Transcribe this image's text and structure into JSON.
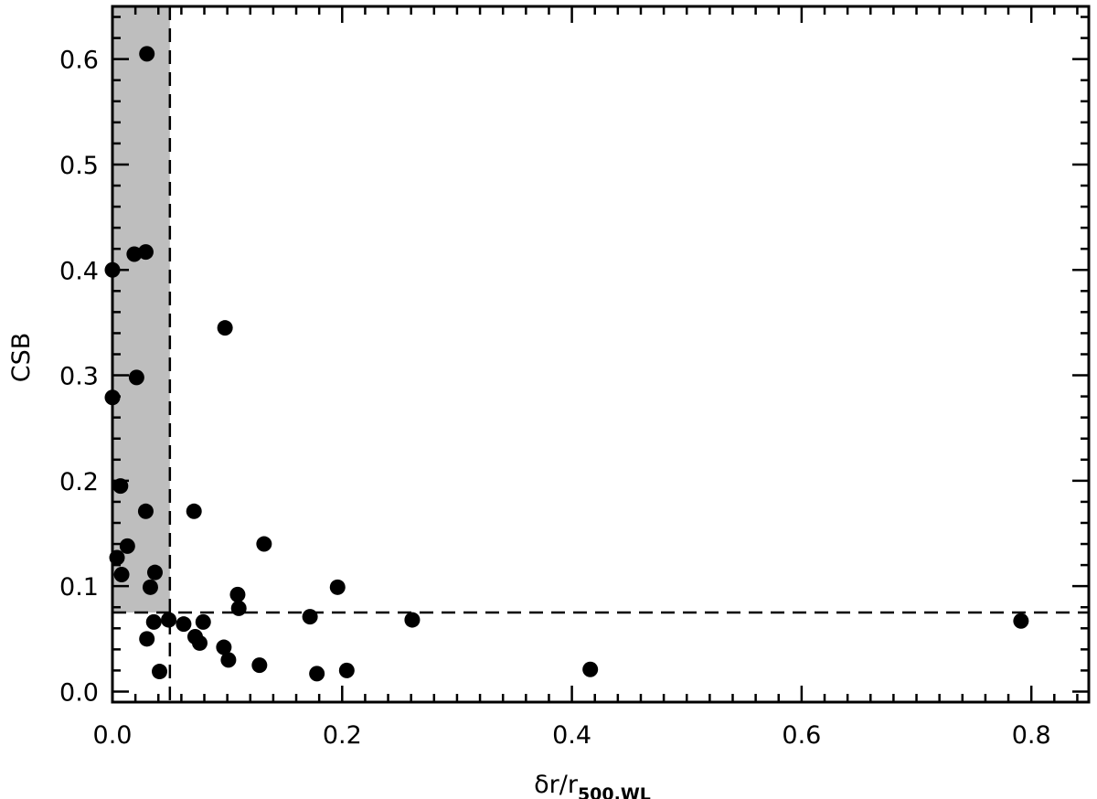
{
  "chart_data": {
    "type": "scatter",
    "title": "",
    "xlabel": {
      "main": "δr/r",
      "subscript": "500,WL"
    },
    "ylabel": "CSB",
    "xlim": [
      0,
      0.85
    ],
    "ylim": [
      -0.01,
      0.65
    ],
    "xticks": [
      0.0,
      0.2,
      0.4,
      0.6,
      0.8
    ],
    "xtick_labels": [
      "0.0",
      "0.2",
      "0.4",
      "0.6",
      "0.8"
    ],
    "yticks": [
      0.0,
      0.1,
      0.2,
      0.3,
      0.4,
      0.5,
      0.6
    ],
    "ytick_labels": [
      "0.0",
      "0.1",
      "0.2",
      "0.3",
      "0.4",
      "0.5",
      "0.6"
    ],
    "grid": false,
    "shaded_region": {
      "x": [
        0,
        0.05
      ],
      "y": [
        0.075,
        0.65
      ],
      "color": "#bebebe"
    },
    "threshold_lines": {
      "x": 0.05,
      "y": 0.075,
      "style": "dashed"
    },
    "marker_color": "#000000",
    "series": [
      {
        "points": [
          [
            0.03,
            0.605
          ],
          [
            0.0,
            0.4
          ],
          [
            0.019,
            0.415
          ],
          [
            0.029,
            0.417
          ],
          [
            0.021,
            0.298
          ],
          [
            0.0,
            0.279
          ],
          [
            0.098,
            0.345
          ],
          [
            0.007,
            0.195
          ],
          [
            0.029,
            0.171
          ],
          [
            0.071,
            0.171
          ],
          [
            0.013,
            0.138
          ],
          [
            0.004,
            0.127
          ],
          [
            0.008,
            0.111
          ],
          [
            0.037,
            0.113
          ],
          [
            0.033,
            0.099
          ],
          [
            0.132,
            0.14
          ],
          [
            0.109,
            0.092
          ],
          [
            0.11,
            0.079
          ],
          [
            0.196,
            0.099
          ],
          [
            0.036,
            0.066
          ],
          [
            0.049,
            0.068
          ],
          [
            0.062,
            0.064
          ],
          [
            0.079,
            0.066
          ],
          [
            0.172,
            0.071
          ],
          [
            0.261,
            0.068
          ],
          [
            0.03,
            0.05
          ],
          [
            0.072,
            0.052
          ],
          [
            0.076,
            0.046
          ],
          [
            0.097,
            0.042
          ],
          [
            0.101,
            0.03
          ],
          [
            0.128,
            0.025
          ],
          [
            0.041,
            0.019
          ],
          [
            0.178,
            0.017
          ],
          [
            0.204,
            0.02
          ],
          [
            0.416,
            0.021
          ],
          [
            0.791,
            0.067
          ]
        ]
      }
    ]
  }
}
